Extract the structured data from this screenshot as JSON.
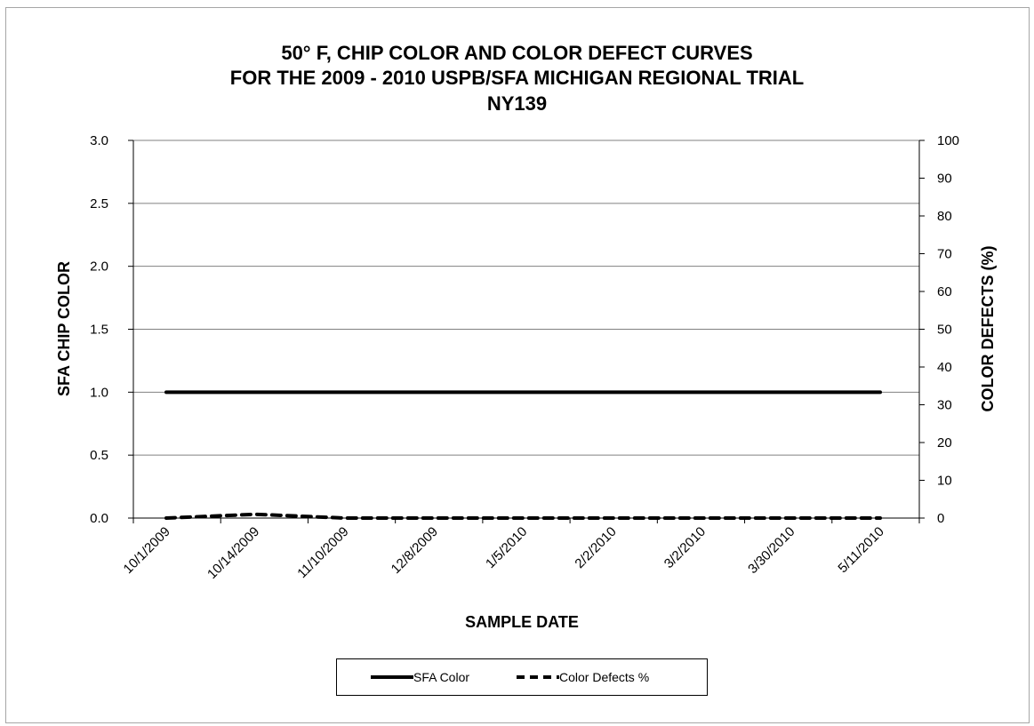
{
  "chart_data": {
    "type": "line",
    "title": [
      "50° F, CHIP COLOR AND COLOR DEFECT CURVES",
      "FOR THE 2009 - 2010 USPB/SFA MICHIGAN REGIONAL TRIAL",
      "NY139"
    ],
    "xlabel": "SAMPLE DATE",
    "ylabel": "SFA CHIP COLOR",
    "y2label": "COLOR DEFECTS (%)",
    "x_tick_labels": [
      "10/1/2009",
      "10/14/2009",
      "11/10/2009",
      "12/8/2009",
      "1/5/2010",
      "2/2/2010",
      "3/2/2010",
      "3/30/2010",
      "5/11/2010"
    ],
    "ylim": [
      0,
      3.0
    ],
    "y_ticks": [
      "0.0",
      "0.5",
      "1.0",
      "1.5",
      "2.0",
      "2.5",
      "3.0"
    ],
    "y2lim": [
      0,
      100
    ],
    "y2_ticks": [
      "0",
      "10",
      "20",
      "30",
      "40",
      "50",
      "60",
      "70",
      "80",
      "90",
      "100"
    ],
    "grid": true,
    "legend_position": "bottom",
    "series": [
      {
        "name": "SFA Color",
        "axis": "left",
        "style": "solid",
        "color": "#000000",
        "values": [
          1.0,
          1.0,
          1.0,
          1.0,
          1.0,
          1.0,
          1.0,
          1.0,
          1.0
        ]
      },
      {
        "name": "Color Defects %",
        "axis": "right",
        "style": "dashed",
        "color": "#000000",
        "values": [
          0,
          1,
          0,
          0,
          0,
          0,
          0,
          0,
          0
        ]
      }
    ]
  }
}
